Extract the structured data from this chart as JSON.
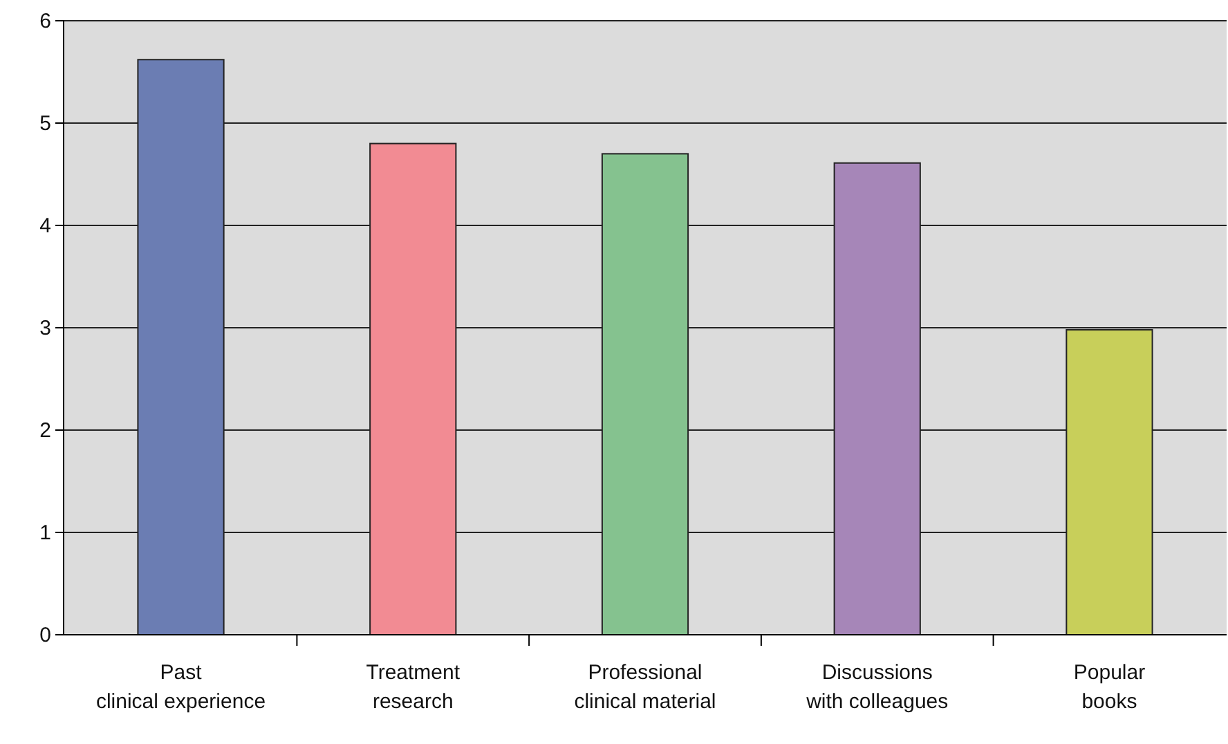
{
  "chart_data": {
    "type": "bar",
    "categories": [
      "Past clinical experience",
      "Treatment research",
      "Professional clinical material",
      "Discussions with colleagues",
      "Popular books"
    ],
    "values": [
      5.62,
      4.8,
      4.7,
      4.61,
      2.98
    ],
    "colors": [
      "#6b7db3",
      "#f28b93",
      "#85c28f",
      "#a686b8",
      "#c8cf5a"
    ],
    "ylim": [
      0,
      6
    ],
    "yticks": [
      0,
      1,
      2,
      3,
      4,
      5,
      6
    ],
    "grid": "y"
  }
}
